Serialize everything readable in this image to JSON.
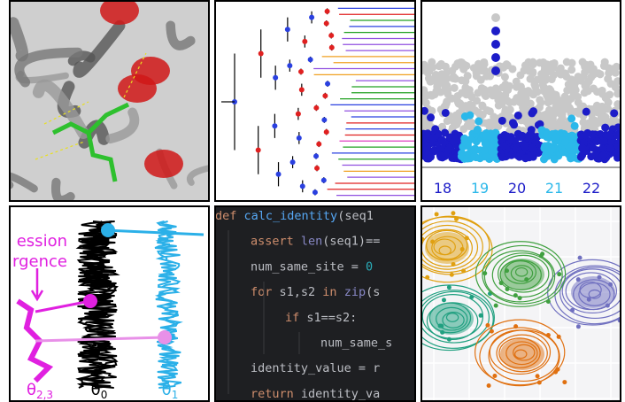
{
  "panels": {
    "manhattan": {
      "labels": [
        {
          "text": "18",
          "color": "#1c1cc8"
        },
        {
          "text": "19",
          "color": "#2bb8ea"
        },
        {
          "text": "20",
          "color": "#1c1cc8"
        },
        {
          "text": "21",
          "color": "#2bb8ea"
        },
        {
          "text": "22",
          "color": "#1c1cc8"
        }
      ]
    },
    "traces": {
      "annotation": [
        "ession",
        "rgence"
      ],
      "labels": [
        {
          "symbol": "θ",
          "subscript": "2,3",
          "color": "#e020e0"
        },
        {
          "symbol": "θ",
          "subscript": "0",
          "color": "#000000"
        },
        {
          "symbol": "θ",
          "subscript": "1",
          "color": "#2bb0e8"
        }
      ]
    },
    "code": {
      "lines": [
        [
          {
            "text": "def ",
            "color": "#cf8e6d"
          },
          {
            "text": "calc_identity",
            "color": "#56a8f5"
          },
          {
            "text": "(seq1",
            "color": "#bcbec4"
          }
        ],
        [
          {
            "text": "assert ",
            "color": "#cf8e6d"
          },
          {
            "text": "len",
            "color": "#8888c6"
          },
          {
            "text": "(seq1)==",
            "color": "#bcbec4"
          }
        ],
        [
          {
            "text": "num_same_site = ",
            "color": "#bcbec4"
          },
          {
            "text": "0",
            "color": "#2aacb8"
          }
        ],
        [
          {
            "text": "for ",
            "color": "#cf8e6d"
          },
          {
            "text": "s1,s2 ",
            "color": "#bcbec4"
          },
          {
            "text": "in ",
            "color": "#cf8e6d"
          },
          {
            "text": "zip",
            "color": "#8888c6"
          },
          {
            "text": "(s",
            "color": "#bcbec4"
          }
        ],
        [
          {
            "text": "if ",
            "color": "#cf8e6d"
          },
          {
            "text": "s1==s2:",
            "color": "#bcbec4"
          }
        ],
        [
          {
            "text": "num_same_s",
            "color": "#bcbec4"
          }
        ],
        [
          {
            "text": "identity_value = r",
            "color": "#bcbec4"
          }
        ],
        [
          {
            "text": "return ",
            "color": "#cf8e6d"
          },
          {
            "text": "identity_va",
            "color": "#bcbec4"
          }
        ]
      ]
    }
  }
}
